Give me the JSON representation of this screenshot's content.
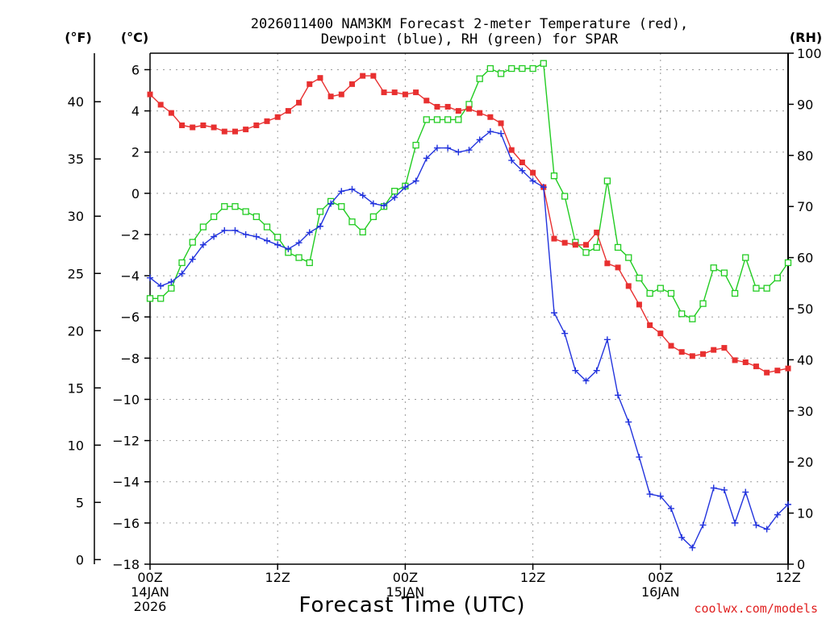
{
  "chart_data": {
    "type": "line",
    "title": [
      "2026011400 NAM3KM Forecast 2-meter Temperature (red),",
      "Dewpoint (blue), RH (green) for SPAR"
    ],
    "xlabel": "Forecast Time (UTC)",
    "credit": "coolwx.com/models",
    "unit_labels": {
      "fahrenheit": "(°F)",
      "celsius": "(°C)",
      "rh": "(RH)"
    },
    "x_range_hours": [
      0,
      60
    ],
    "x_ticks": [
      {
        "hour": 0,
        "label": "00Z",
        "date": "14JAN",
        "year": "2026"
      },
      {
        "hour": 12,
        "label": "12Z",
        "date": "",
        "year": ""
      },
      {
        "hour": 24,
        "label": "00Z",
        "date": "15JAN",
        "year": ""
      },
      {
        "hour": 36,
        "label": "12Z",
        "date": "",
        "year": ""
      },
      {
        "hour": 48,
        "label": "00Z",
        "date": "16JAN",
        "year": ""
      },
      {
        "hour": 60,
        "label": "12Z",
        "date": "",
        "year": ""
      }
    ],
    "celsius_axis": {
      "range": [
        -18,
        6.8
      ],
      "ticks": [
        -18,
        -16,
        -14,
        -12,
        -10,
        -8,
        -6,
        -4,
        -2,
        0,
        2,
        4,
        6
      ]
    },
    "fahrenheit_axis": {
      "ticks": [
        0,
        5,
        10,
        15,
        20,
        25,
        30,
        35,
        40
      ]
    },
    "rh_axis": {
      "range": [
        0,
        100
      ],
      "ticks": [
        0,
        10,
        20,
        30,
        40,
        50,
        60,
        70,
        80,
        90,
        100
      ]
    },
    "hours": [
      0,
      1,
      2,
      3,
      4,
      5,
      6,
      7,
      8,
      9,
      10,
      11,
      12,
      13,
      14,
      15,
      16,
      17,
      18,
      19,
      20,
      21,
      22,
      23,
      24,
      25,
      26,
      27,
      28,
      29,
      30,
      31,
      32,
      33,
      34,
      35,
      36,
      37,
      38,
      39,
      40,
      41,
      42,
      43,
      44,
      45,
      46,
      47,
      48,
      49,
      50,
      51,
      52,
      53,
      54,
      55,
      56,
      57,
      58,
      59,
      60
    ],
    "series": [
      {
        "name": "Temperature",
        "unit": "C",
        "color": "#e83030",
        "marker": "filled-square",
        "values": [
          4.8,
          4.3,
          3.9,
          3.3,
          3.2,
          3.3,
          3.2,
          3.0,
          3.0,
          3.1,
          3.3,
          3.5,
          3.7,
          4.0,
          4.4,
          5.3,
          5.6,
          4.7,
          4.8,
          5.3,
          5.7,
          5.7,
          4.9,
          4.9,
          4.8,
          4.9,
          4.5,
          4.2,
          4.2,
          4.0,
          4.1,
          3.9,
          3.7,
          3.4,
          2.1,
          1.5,
          1.0,
          0.3,
          -2.2,
          -2.4,
          -2.5,
          -2.5,
          -1.9,
          -3.4,
          -3.6,
          -4.5,
          -5.4,
          -6.4,
          -6.8,
          -7.4,
          -7.7,
          -7.9,
          -7.8,
          -7.6,
          -7.5,
          -8.1,
          -8.2,
          -8.4,
          -8.7,
          -8.6,
          -8.5
        ]
      },
      {
        "name": "Dewpoint",
        "unit": "C",
        "color": "#2233dd",
        "marker": "plus",
        "values": [
          -4.1,
          -4.5,
          -4.3,
          -3.9,
          -3.2,
          -2.5,
          -2.1,
          -1.8,
          -1.8,
          -2.0,
          -2.1,
          -2.3,
          -2.5,
          -2.7,
          -2.4,
          -1.9,
          -1.6,
          -0.5,
          0.1,
          0.2,
          -0.1,
          -0.5,
          -0.6,
          -0.2,
          0.3,
          0.6,
          1.7,
          2.2,
          2.2,
          2.0,
          2.1,
          2.6,
          3.0,
          2.9,
          1.6,
          1.1,
          0.6,
          0.3,
          -5.8,
          -6.8,
          -8.6,
          -9.1,
          -8.6,
          -7.1,
          -9.8,
          -11.1,
          -12.8,
          -14.6,
          -14.7,
          -15.3,
          -16.7,
          -17.2,
          -16.1,
          -14.3,
          -14.4,
          -16.0,
          -14.5,
          -16.1,
          -16.3,
          -15.6,
          -15.1
        ]
      },
      {
        "name": "RH",
        "unit": "%",
        "color": "#22cc22",
        "marker": "open-square",
        "values": [
          52,
          52,
          54,
          59,
          63,
          66,
          68,
          70,
          70,
          69,
          68,
          66,
          64,
          61,
          60,
          59,
          69,
          71,
          70,
          67,
          65,
          68,
          70,
          73,
          74,
          82,
          87,
          87,
          87,
          87,
          90,
          95,
          97,
          96,
          97,
          97,
          97,
          98,
          76,
          72,
          63,
          61,
          62,
          75,
          62,
          60,
          56,
          53,
          54,
          53,
          49,
          48,
          51,
          58,
          57,
          53,
          60,
          54,
          54,
          56,
          59
        ]
      }
    ]
  }
}
